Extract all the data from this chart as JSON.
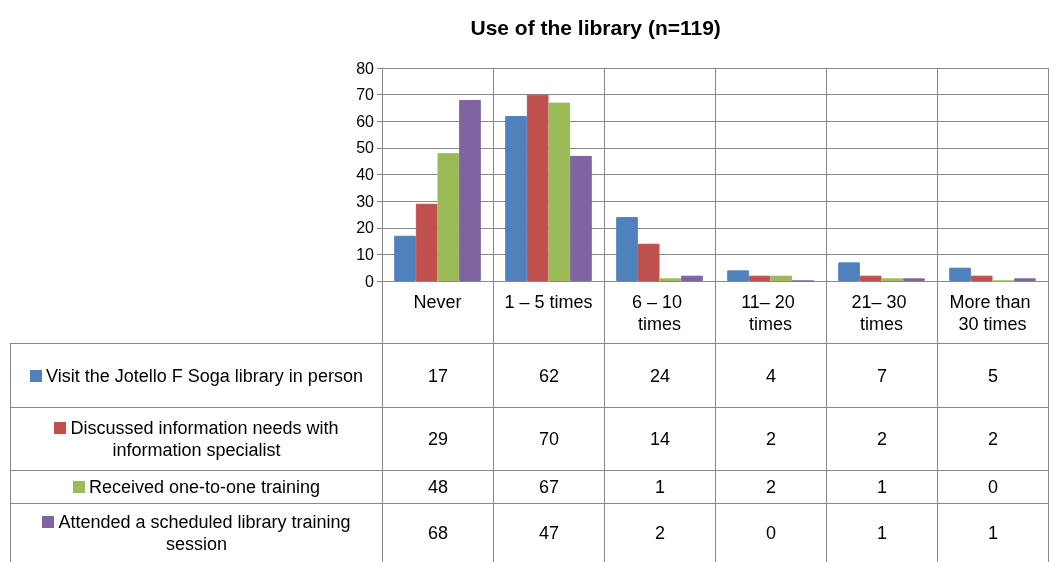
{
  "chart_data": {
    "type": "bar",
    "title": "Use of the library (n=119)",
    "categories": [
      "Never",
      "1 – 5 times",
      "6 – 10 times",
      "11– 20 times",
      "21– 30 times",
      "More than 30 times"
    ],
    "series": [
      {
        "name": "Visit the Jotello F Soga library in person",
        "color": "#4f81bd",
        "values": [
          17,
          62,
          24,
          4,
          7,
          5
        ]
      },
      {
        "name": "Discussed information needs with information specialist",
        "color": "#c0504d",
        "values": [
          29,
          70,
          14,
          2,
          2,
          2
        ]
      },
      {
        "name": "Received one-to-one training",
        "color": "#9bbb59",
        "values": [
          48,
          67,
          1,
          2,
          1,
          0
        ]
      },
      {
        "name": "Attended a scheduled library training session",
        "color": "#8064a2",
        "values": [
          68,
          47,
          2,
          0,
          1,
          1
        ]
      }
    ],
    "ylim": [
      0,
      80
    ],
    "yticks": [
      0,
      10,
      20,
      30,
      40,
      50,
      60,
      70,
      80
    ],
    "grid": "y",
    "legend": "bottom",
    "data_labels": true
  }
}
